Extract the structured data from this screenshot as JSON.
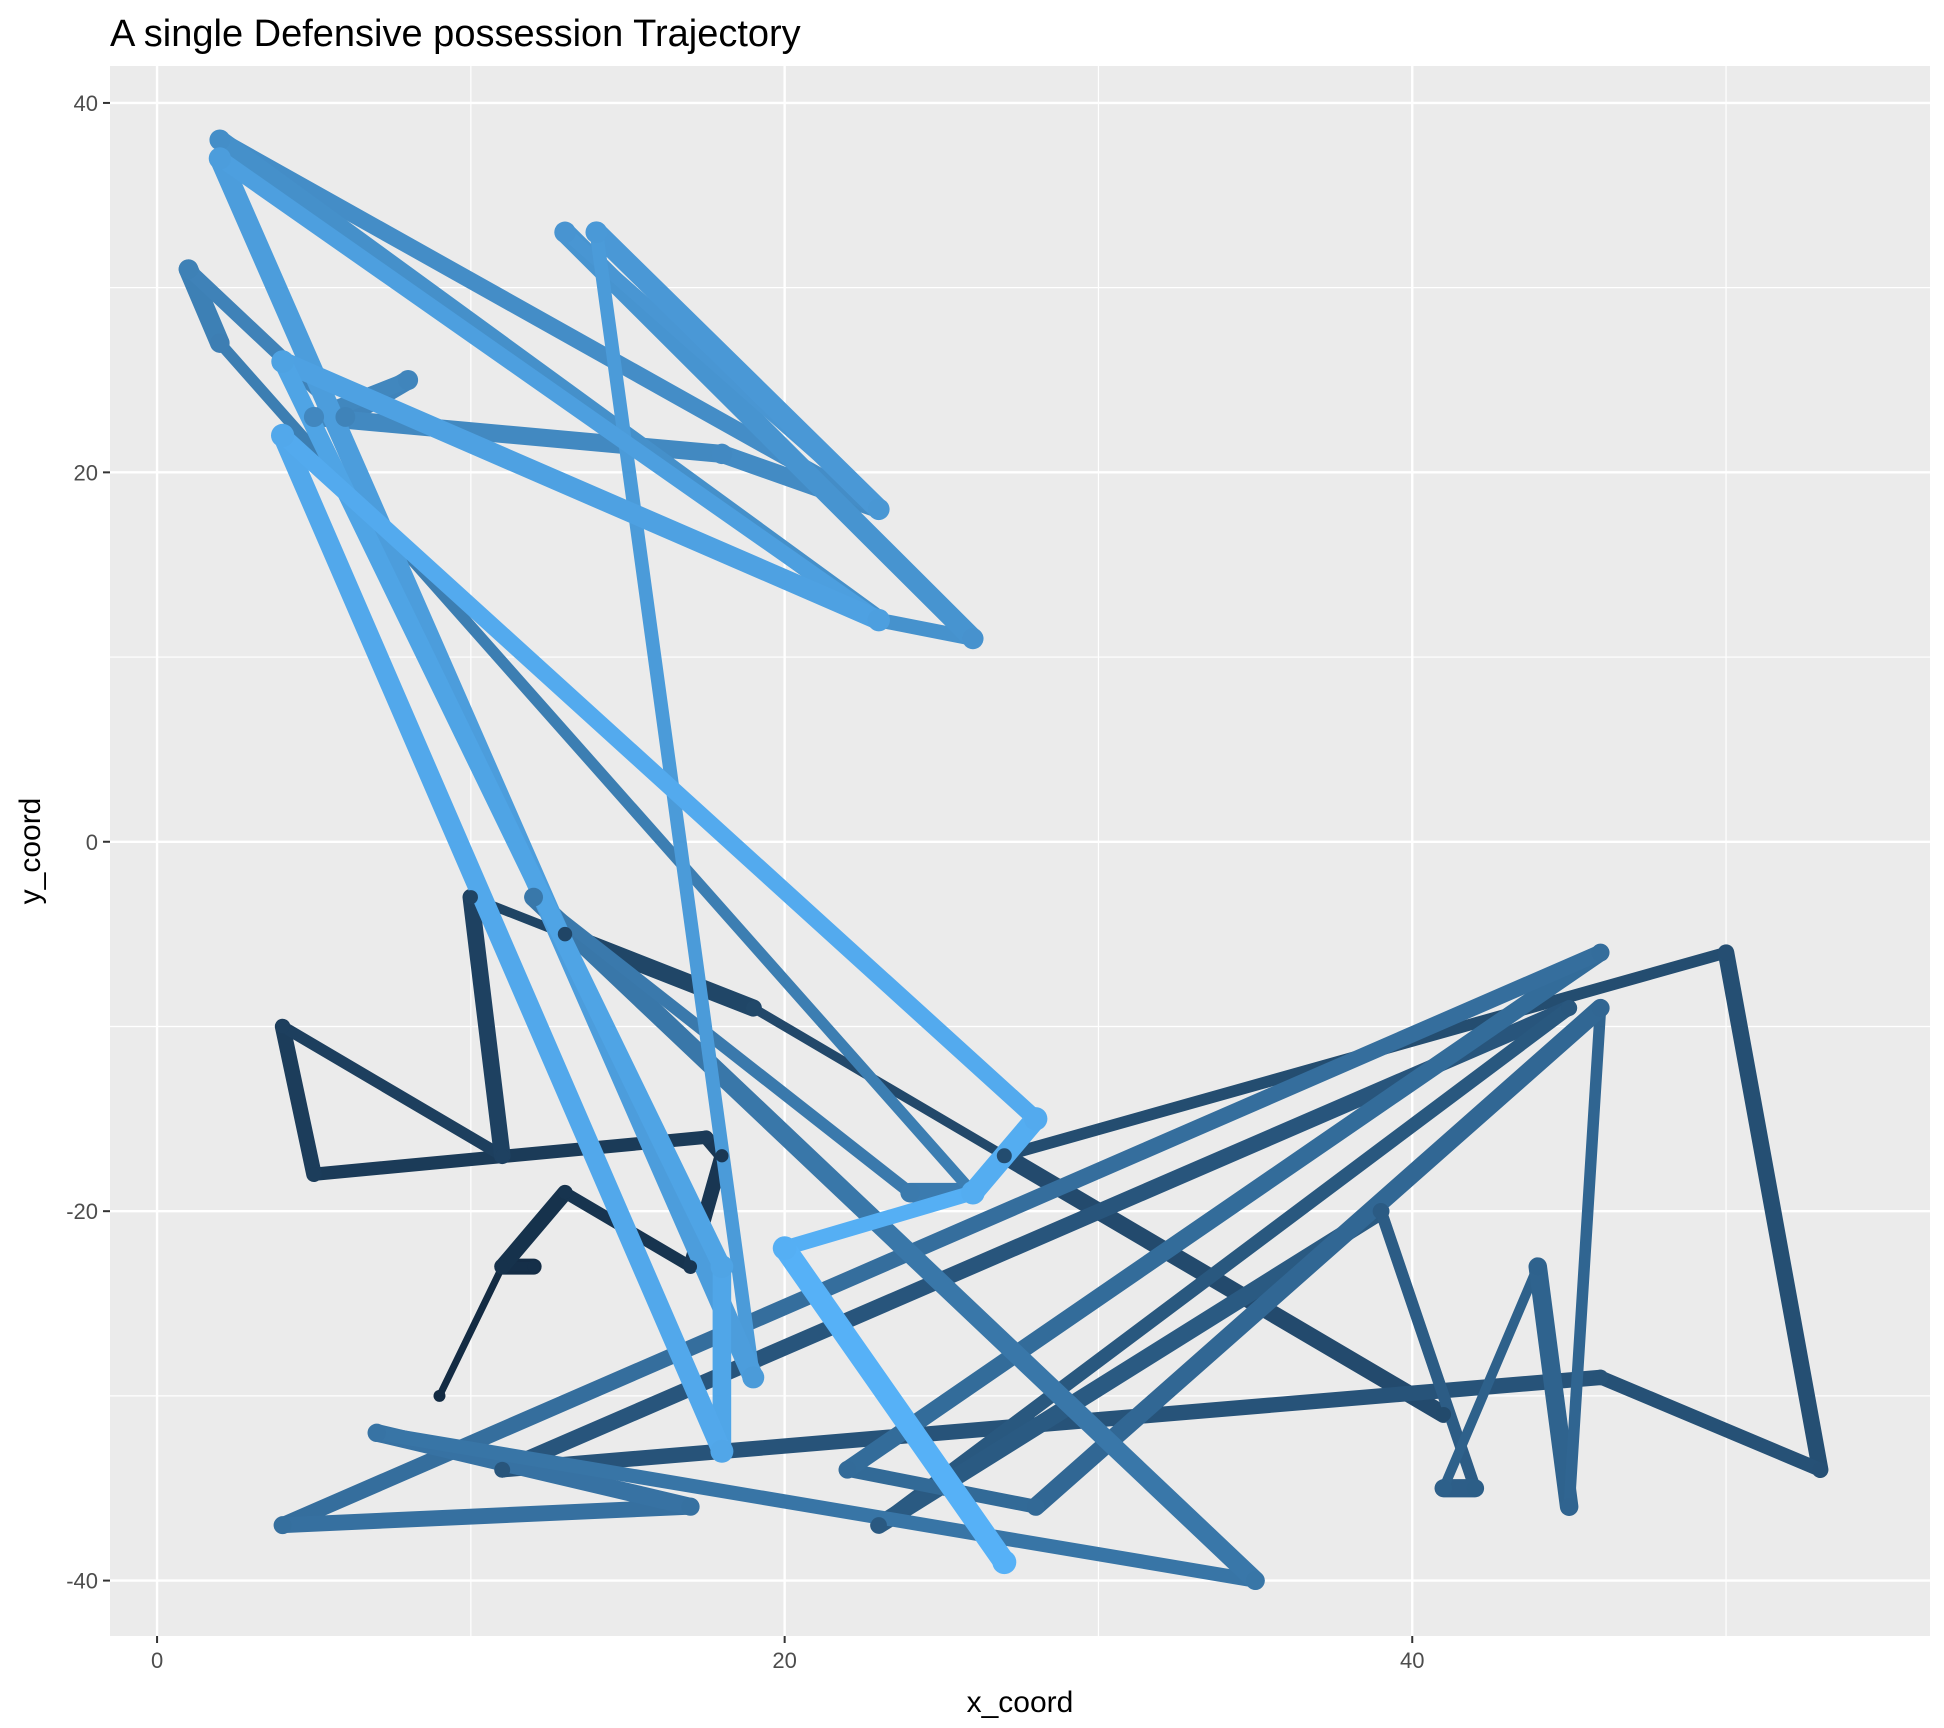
{
  "chart_data": {
    "type": "line",
    "title": "A single Defensive possession Trajectory",
    "xlabel": "x_coord",
    "ylabel": "y_coord",
    "xlim": [
      -1.5,
      56.5
    ],
    "ylim": [
      -43,
      42
    ],
    "x_ticks": [
      0,
      20,
      40
    ],
    "y_ticks": [
      -40,
      -20,
      0,
      20,
      40
    ],
    "x_tick_labels": [
      "0",
      "20",
      "40"
    ],
    "y_tick_labels": [
      "-40",
      "-20",
      "0",
      "20",
      "40"
    ],
    "grid": true,
    "legend": "none",
    "color_scale": [
      "#132b43",
      "#56b1f7"
    ],
    "series": [
      {
        "points": [
          {
            "x": 9,
            "y": -30
          },
          {
            "x": 11,
            "y": -23
          },
          {
            "x": 12,
            "y": -23
          },
          {
            "x": 11,
            "y": -23
          },
          {
            "x": 13,
            "y": -19
          },
          {
            "x": 17,
            "y": -23
          },
          {
            "x": 18,
            "y": -17
          },
          {
            "x": 17.5,
            "y": -16
          },
          {
            "x": 5,
            "y": -18
          },
          {
            "x": 4,
            "y": -10
          },
          {
            "x": 11,
            "y": -17
          },
          {
            "x": 10,
            "y": -3
          },
          {
            "x": 13,
            "y": -5
          },
          {
            "x": 19,
            "y": -9
          },
          {
            "x": 41,
            "y": -31
          },
          {
            "x": 27,
            "y": -17
          },
          {
            "x": 50,
            "y": -6
          },
          {
            "x": 53,
            "y": -34
          },
          {
            "x": 46,
            "y": -29
          },
          {
            "x": 11,
            "y": -34
          },
          {
            "x": 45,
            "y": -9
          },
          {
            "x": 23,
            "y": -37
          },
          {
            "x": 39,
            "y": -20
          },
          {
            "x": 42,
            "y": -35
          },
          {
            "x": 41,
            "y": -35
          },
          {
            "x": 44,
            "y": -23
          },
          {
            "x": 45,
            "y": -36
          },
          {
            "x": 46,
            "y": -9
          },
          {
            "x": 28,
            "y": -36
          },
          {
            "x": 22,
            "y": -34
          },
          {
            "x": 46,
            "y": -6
          },
          {
            "x": 4,
            "y": -37
          },
          {
            "x": 17,
            "y": -36
          },
          {
            "x": 7,
            "y": -32
          },
          {
            "x": 35,
            "y": -40
          },
          {
            "x": 12,
            "y": -3
          },
          {
            "x": 24,
            "y": -19
          },
          {
            "x": 26,
            "y": -19
          },
          {
            "x": 2,
            "y": 27
          },
          {
            "x": 1,
            "y": 31
          },
          {
            "x": 6,
            "y": 23
          },
          {
            "x": 8,
            "y": 25
          },
          {
            "x": 5,
            "y": 23
          },
          {
            "x": 18,
            "y": 21
          },
          {
            "x": 23,
            "y": 18
          },
          {
            "x": 2,
            "y": 38
          },
          {
            "x": 23,
            "y": 12
          },
          {
            "x": 26,
            "y": 11
          },
          {
            "x": 13,
            "y": 33
          },
          {
            "x": 23,
            "y": 18
          },
          {
            "x": 14,
            "y": 33
          },
          {
            "x": 19,
            "y": -29
          },
          {
            "x": 2,
            "y": 37
          },
          {
            "x": 23,
            "y": 12
          },
          {
            "x": 4,
            "y": 26
          },
          {
            "x": 18,
            "y": -23
          },
          {
            "x": 18,
            "y": -33
          },
          {
            "x": 4,
            "y": 22
          },
          {
            "x": 28,
            "y": -15
          },
          {
            "x": 26,
            "y": -19
          },
          {
            "x": 20,
            "y": -22
          },
          {
            "x": 27,
            "y": -39
          }
        ]
      }
    ]
  }
}
